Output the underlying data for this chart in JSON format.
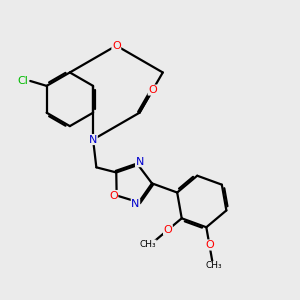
{
  "bg_color": "#ebebeb",
  "bond_color": "#000000",
  "atom_colors": {
    "O": "#ff0000",
    "N": "#0000cd",
    "Cl": "#00bb00",
    "C": "#000000"
  },
  "lw": 1.6,
  "dbo": 0.055
}
